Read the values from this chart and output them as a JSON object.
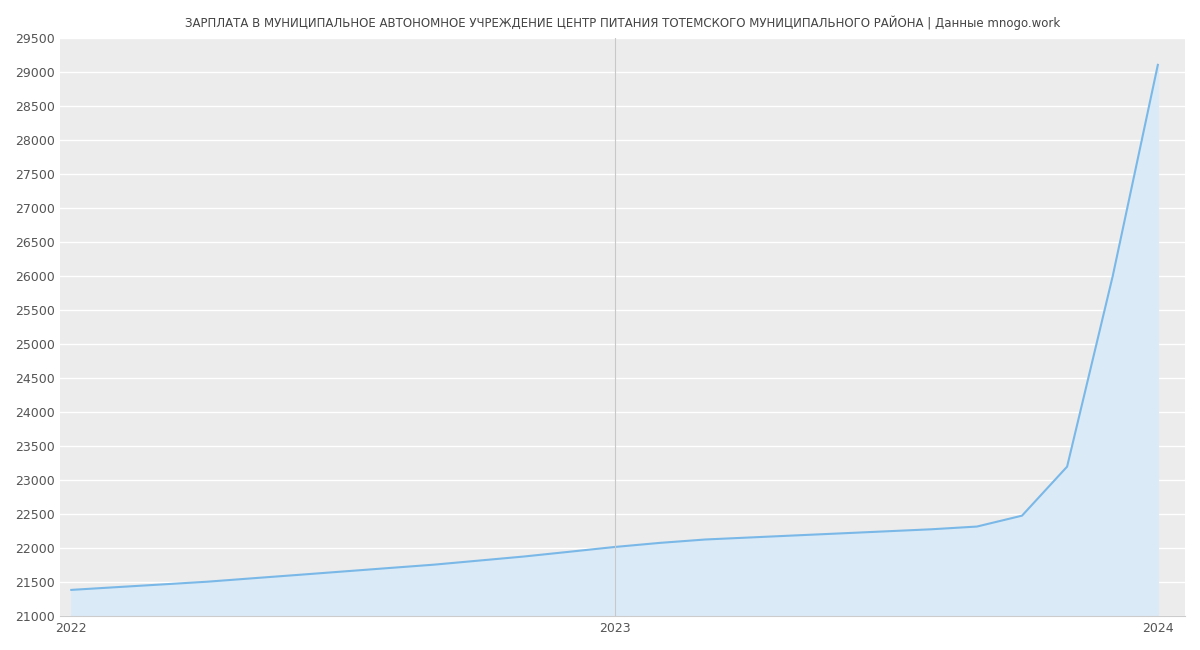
{
  "title": "ЗАРПЛАТА В МУНИЦИПАЛЬНОЕ АВТОНОМНОЕ УЧРЕЖДЕНИЕ ЦЕНТР ПИТАНИЯ ТОТЕМСКОГО МУНИЦИПАЛЬНОГО РАЙОНА | Данные mnogo.work",
  "title_fontsize": 8.5,
  "line_color": "#7ab8e8",
  "fill_color": "#daeaf7",
  "background_color": "#ffffff",
  "plot_bg_color": "#ececec",
  "grid_color": "#ffffff",
  "ylim": [
    21000,
    29500
  ],
  "yticks": [
    21000,
    21500,
    22000,
    22500,
    23000,
    23500,
    24000,
    24500,
    25000,
    25500,
    26000,
    26500,
    27000,
    27500,
    28000,
    28500,
    29000,
    29500
  ],
  "xticks_labels": [
    "2022",
    "2023",
    "2024"
  ],
  "x_data": [
    0.0,
    0.083,
    0.167,
    0.25,
    0.333,
    0.417,
    0.5,
    0.583,
    0.667,
    0.75,
    0.833,
    0.917,
    1.0,
    1.083,
    1.167,
    1.25,
    1.333,
    1.417,
    1.5,
    1.583,
    1.667,
    1.75,
    1.833,
    1.917,
    2.0
  ],
  "y_data": [
    21390,
    21430,
    21470,
    21510,
    21560,
    21610,
    21660,
    21710,
    21760,
    21820,
    21880,
    21950,
    22020,
    22080,
    22130,
    22160,
    22190,
    22220,
    22250,
    22280,
    22320,
    22480,
    23200,
    26000,
    29100
  ],
  "vline_positions": [
    1.0
  ],
  "vline_color": "#c8c8c8",
  "xlabel": "",
  "ylabel": ""
}
